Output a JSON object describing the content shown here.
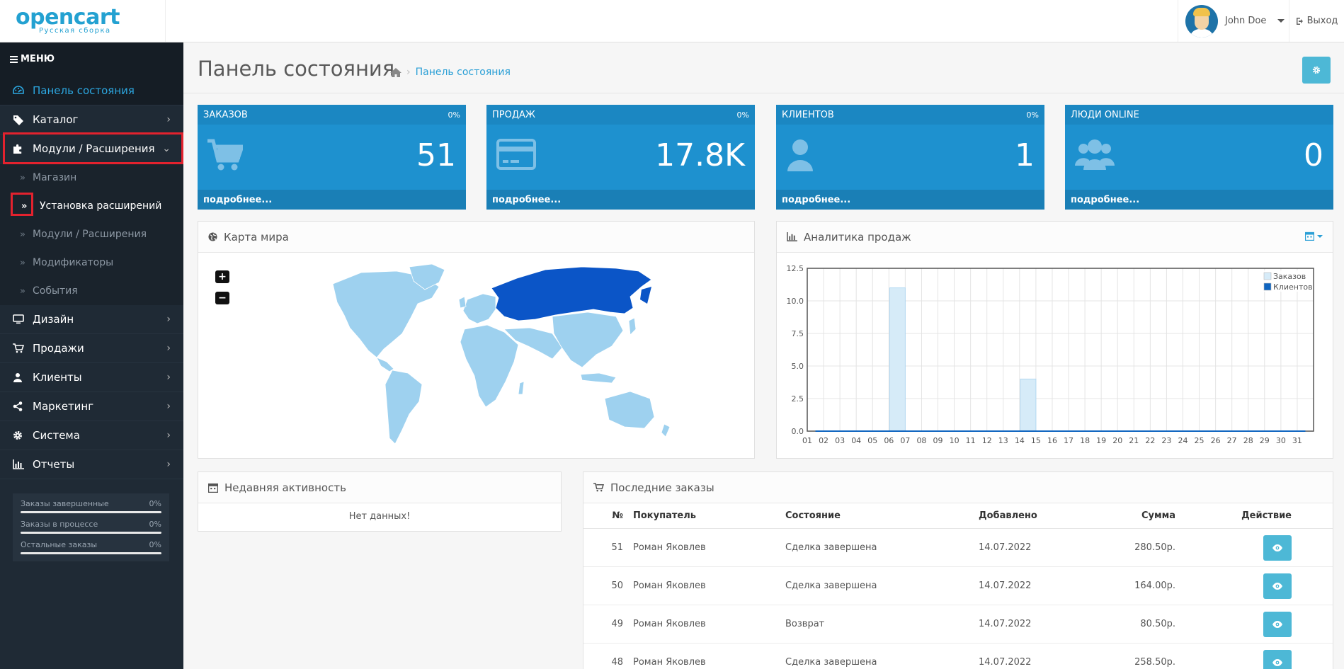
{
  "header": {
    "logo_main": "opencart",
    "logo_sub": "Русская сборка",
    "user_name": "John Doe",
    "logout_label": "Выход"
  },
  "sidebar": {
    "menu_label": "МЕНЮ",
    "items": [
      {
        "label": "Панель состояния",
        "icon": "dashboard-icon"
      },
      {
        "label": "Каталог",
        "icon": "tags-icon"
      },
      {
        "label": "Модули / Расширения",
        "icon": "puzzle-icon"
      },
      {
        "label": "Дизайн",
        "icon": "desktop-icon"
      },
      {
        "label": "Продажи",
        "icon": "cart-icon"
      },
      {
        "label": "Клиенты",
        "icon": "user-icon"
      },
      {
        "label": "Маркетинг",
        "icon": "share-icon"
      },
      {
        "label": "Система",
        "icon": "gear-icon"
      },
      {
        "label": "Отчеты",
        "icon": "bar-chart-icon"
      }
    ],
    "subitems": [
      {
        "label": "Магазин"
      },
      {
        "label": "Установка расширений"
      },
      {
        "label": "Модули / Расширения"
      },
      {
        "label": "Модификаторы"
      },
      {
        "label": "События"
      }
    ],
    "stats": [
      {
        "label": "Заказы завершенные",
        "value": "0%"
      },
      {
        "label": "Заказы в процессе",
        "value": "0%"
      },
      {
        "label": "Остальные заказы",
        "value": "0%"
      }
    ]
  },
  "page": {
    "title": "Панель состояния",
    "breadcrumb": "Панель состояния"
  },
  "tiles": [
    {
      "title": "ЗАКАЗОВ",
      "pct": "0%",
      "value": "51",
      "more": "подробнее..."
    },
    {
      "title": "ПРОДАЖ",
      "pct": "0%",
      "value": "17.8K",
      "more": "подробнее..."
    },
    {
      "title": "КЛИЕНТОВ",
      "pct": "0%",
      "value": "1",
      "more": "подробнее..."
    },
    {
      "title": "ЛЮДИ ONLINE",
      "pct": "",
      "value": "0",
      "more": "подробнее..."
    }
  ],
  "map_panel": {
    "title": "Карта мира",
    "zoom_in": "+",
    "zoom_out": "−",
    "colors": {
      "base": "#9ed1ef",
      "highlight": "#0b55c7"
    }
  },
  "sales_panel": {
    "title": "Аналитика продаж"
  },
  "chart_data": {
    "type": "bar",
    "categories": [
      "01",
      "02",
      "03",
      "04",
      "05",
      "06",
      "07",
      "08",
      "09",
      "10",
      "11",
      "12",
      "13",
      "14",
      "15",
      "16",
      "17",
      "18",
      "19",
      "20",
      "21",
      "22",
      "23",
      "24",
      "25",
      "26",
      "27",
      "28",
      "29",
      "30",
      "31"
    ],
    "series": [
      {
        "name": "Заказов",
        "values": [
          0,
          0,
          0,
          0,
          0,
          11,
          0,
          0,
          0,
          0,
          0,
          0,
          0,
          4,
          0,
          0,
          0,
          0,
          0,
          0,
          0,
          0,
          0,
          0,
          0,
          0,
          0,
          0,
          0,
          0,
          0
        ],
        "color": "#d6ebf8"
      },
      {
        "name": "Клиентов",
        "values": [
          0,
          0,
          0,
          0,
          0,
          0,
          0,
          0,
          0,
          0,
          0,
          0,
          0,
          0,
          0,
          0,
          0,
          0,
          0,
          0,
          0,
          0,
          0,
          0,
          0,
          0,
          0,
          0,
          0,
          0,
          0
        ],
        "color": "#1065c0"
      }
    ],
    "yticks": [
      "0.0",
      "2.5",
      "5.0",
      "7.5",
      "10.0",
      "12.5"
    ],
    "ylim": [
      0,
      12.5
    ],
    "grid": true,
    "legend": "top-right"
  },
  "activity": {
    "title": "Недавняя активность",
    "empty": "Нет данных!"
  },
  "orders": {
    "title": "Последние заказы",
    "columns": {
      "no": "№",
      "customer": "Покупатель",
      "status": "Состояние",
      "date": "Добавлено",
      "sum": "Сумма",
      "action": "Действие"
    },
    "rows": [
      {
        "no": "51",
        "customer": "Роман Яковлев",
        "status": "Сделка завершена",
        "date": "14.07.2022",
        "sum": "280.50р."
      },
      {
        "no": "50",
        "customer": "Роман Яковлев",
        "status": "Сделка завершена",
        "date": "14.07.2022",
        "sum": "164.00р."
      },
      {
        "no": "49",
        "customer": "Роман Яковлев",
        "status": "Возврат",
        "date": "14.07.2022",
        "sum": "80.50р."
      },
      {
        "no": "48",
        "customer": "Роман Яковлев",
        "status": "Сделка завершена",
        "date": "14.07.2022",
        "sum": "258.50р."
      }
    ]
  }
}
